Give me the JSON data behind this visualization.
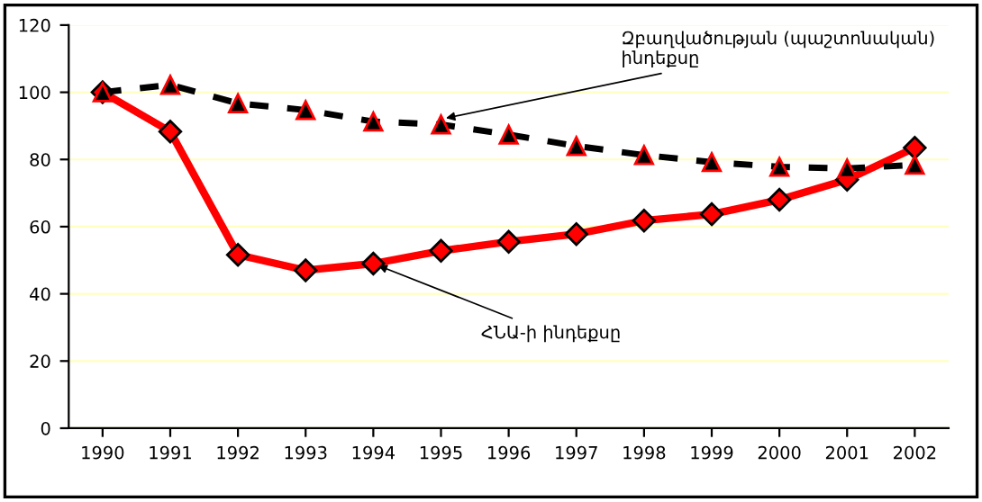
{
  "chart_data": {
    "type": "line",
    "categories": [
      "1990",
      "1991",
      "1992",
      "1993",
      "1994",
      "1995",
      "1996",
      "1997",
      "1998",
      "1999",
      "2000",
      "2001",
      "2002"
    ],
    "series": [
      {
        "color": "#000000",
        "marker": "triangle",
        "line_style": "dashed",
        "values": [
          100,
          102.2,
          96.7,
          94.7,
          91.3,
          90.4,
          87.4,
          84,
          81.3,
          79.2,
          77.8,
          77.3,
          78.4
        ]
      },
      {
        "color": "#ff0000",
        "marker": "diamond",
        "line_style": "solid",
        "values": [
          100,
          88.3,
          51.6,
          47,
          49,
          52.8,
          55.5,
          57.8,
          61.8,
          63.7,
          68,
          74,
          83.5
        ]
      }
    ],
    "annotations": [
      {
        "text": "Զբաղվածության (պաշտոնական)\nինդեքսը",
        "x": "1995",
        "y": 92
      },
      {
        "text": "ՀՆԱ-ի ինդեքսը",
        "x": "1994",
        "y": 49
      }
    ],
    "ylim": [
      0,
      120
    ],
    "yticks": [
      0,
      20,
      40,
      60,
      80,
      100,
      120
    ],
    "grid": "y"
  }
}
